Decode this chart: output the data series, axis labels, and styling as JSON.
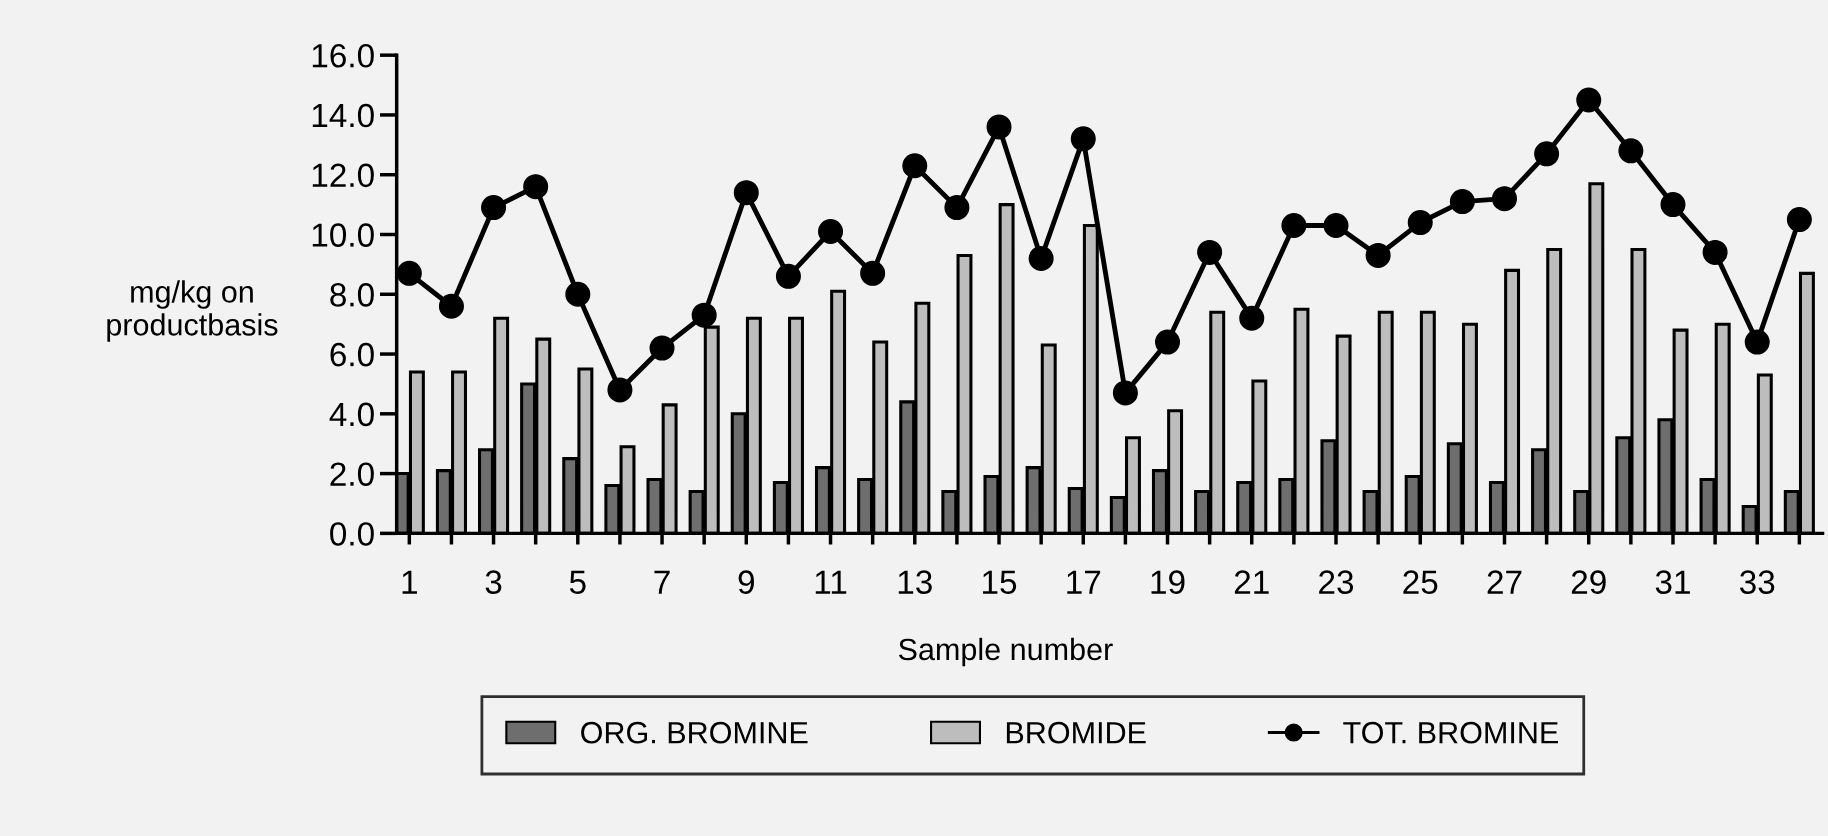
{
  "chart_data": {
    "type": "bar",
    "ylabel": "mg/kg on\nproductbasis",
    "xlabel": "Sample number",
    "categories": [
      "1",
      null,
      "3",
      null,
      "5",
      null,
      "7",
      null,
      "9",
      null,
      "11",
      null,
      "13",
      null,
      "15",
      null,
      "17",
      null,
      "19",
      null,
      "21",
      null,
      "23",
      null,
      "25",
      null,
      "27",
      null,
      "29",
      null,
      "31",
      null,
      "33",
      null
    ],
    "series": [
      {
        "name": "ORG. BROMINE",
        "color": "#6e6e6e",
        "values": [
          2.0,
          2.1,
          2.8,
          5.0,
          2.5,
          1.6,
          1.8,
          1.4,
          4.0,
          1.7,
          2.2,
          1.8,
          4.4,
          1.4,
          1.9,
          2.2,
          1.5,
          1.2,
          2.1,
          1.4,
          1.7,
          1.8,
          3.1,
          1.4,
          1.9,
          3.0,
          1.7,
          2.8,
          1.4,
          3.2,
          3.8,
          1.8,
          0.9,
          1.4
        ]
      },
      {
        "name": "BROMIDE",
        "color": "#bdbdbd",
        "values": [
          5.4,
          5.4,
          7.2,
          6.5,
          5.5,
          2.9,
          4.3,
          6.9,
          7.2,
          7.2,
          8.1,
          6.4,
          7.7,
          9.3,
          11.0,
          6.3,
          10.3,
          3.2,
          4.1,
          7.4,
          5.1,
          7.5,
          6.6,
          7.4,
          7.4,
          7.0,
          8.8,
          9.5,
          11.7,
          9.5,
          6.8,
          7.0,
          5.3,
          8.7
        ]
      },
      {
        "name": "TOT. BROMINE",
        "type": "line",
        "color": "#000000",
        "marker": "circle",
        "line_style": "solid",
        "values": [
          8.7,
          7.6,
          10.9,
          11.6,
          8.0,
          4.8,
          6.2,
          7.3,
          11.4,
          8.6,
          10.1,
          8.7,
          12.3,
          10.9,
          13.6,
          9.2,
          13.2,
          4.7,
          6.4,
          9.4,
          7.2,
          10.3,
          10.3,
          9.3,
          10.4,
          11.1,
          11.2,
          12.7,
          14.5,
          12.8,
          11.0,
          9.4,
          6.4,
          10.5
        ]
      }
    ],
    "ylim": [
      0,
      16
    ],
    "yticks": [
      {
        "value": 0,
        "label": "0.0"
      },
      {
        "value": 2,
        "label": "2.0"
      },
      {
        "value": 4,
        "label": "4.0"
      },
      {
        "value": 6,
        "label": "6.0"
      },
      {
        "value": 8,
        "label": "8.0"
      },
      {
        "value": 10,
        "label": "10.0"
      },
      {
        "value": 12,
        "label": "12.0"
      },
      {
        "value": 14,
        "label": "14.0"
      },
      {
        "value": 16,
        "label": "16.0"
      }
    ],
    "grid": false,
    "legend": "bottom"
  }
}
